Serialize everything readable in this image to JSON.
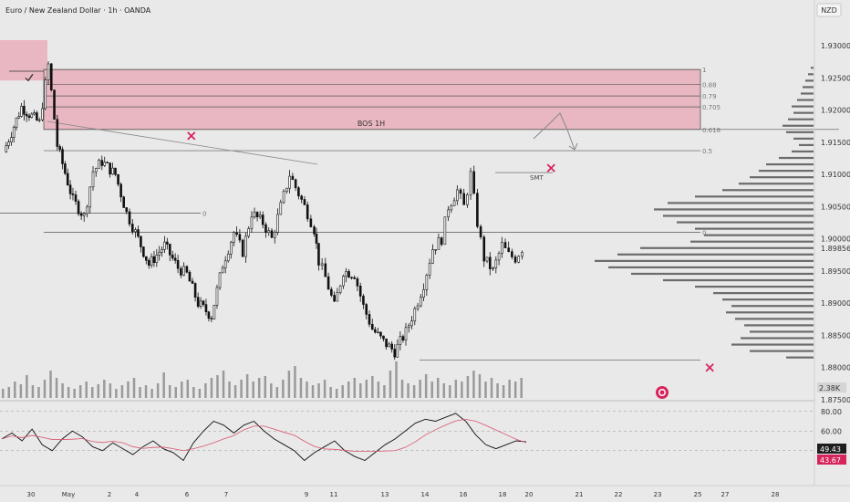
{
  "header": {
    "title": "Euro / New Zealand Dollar · 1h · OANDA",
    "currency_button": "NZD"
  },
  "colors": {
    "background": "#e9e9e9",
    "zone_fill": "#e8b7c1",
    "zone_border": "#555555",
    "candle": "#111111",
    "volume": "#9a9a9a",
    "profile": "#555555",
    "rsi_line": "#111111",
    "rsi_ma": "#d9546f",
    "cross": "#d6245c",
    "label_dark": "#1e1e1e",
    "label_red": "#d6245c"
  },
  "chart_data": {
    "type": "candlestick",
    "title": "Euro / New Zealand Dollar · 1h · OANDA",
    "price_axis": {
      "ticks": [
        "1.93000",
        "1.92500",
        "1.92000",
        "1.91500",
        "1.91000",
        "1.90500",
        "1.90000",
        "1.89500",
        "1.89000",
        "1.88500",
        "1.88000",
        "1.87500"
      ],
      "current_price": "1.89856",
      "ylim": [
        1.875,
        1.932
      ]
    },
    "x_axis": {
      "ticks": [
        "30",
        "May",
        "2",
        "4",
        "6",
        "7",
        "9",
        "11",
        "13",
        "14",
        "16",
        "18",
        "20",
        "21",
        "22",
        "23",
        "25",
        "27",
        "28"
      ]
    },
    "close_path": [
      {
        "d": 0,
        "p": 1.9135
      },
      {
        "d": 0.8,
        "p": 1.9205
      },
      {
        "d": 1.6,
        "p": 1.918
      },
      {
        "d": 2.0,
        "p": 1.927
      },
      {
        "d": 2.4,
        "p": 1.9145
      },
      {
        "d": 3.1,
        "p": 1.906
      },
      {
        "d": 3.6,
        "p": 1.9035
      },
      {
        "d": 4.0,
        "p": 1.9105
      },
      {
        "d": 4.4,
        "p": 1.912
      },
      {
        "d": 5.0,
        "p": 1.91
      },
      {
        "d": 5.5,
        "p": 1.904
      },
      {
        "d": 5.9,
        "p": 1.901
      },
      {
        "d": 6.5,
        "p": 1.896
      },
      {
        "d": 7.2,
        "p": 1.899
      },
      {
        "d": 7.8,
        "p": 1.8955
      },
      {
        "d": 8.2,
        "p": 1.8945
      },
      {
        "d": 8.7,
        "p": 1.89
      },
      {
        "d": 9.3,
        "p": 1.888
      },
      {
        "d": 9.8,
        "p": 1.896
      },
      {
        "d": 10.3,
        "p": 1.901
      },
      {
        "d": 10.7,
        "p": 1.898
      },
      {
        "d": 11.1,
        "p": 1.904
      },
      {
        "d": 11.6,
        "p": 1.9025
      },
      {
        "d": 12.0,
        "p": 1.9
      },
      {
        "d": 12.4,
        "p": 1.905
      },
      {
        "d": 12.8,
        "p": 1.91
      },
      {
        "d": 13.2,
        "p": 1.907
      },
      {
        "d": 13.6,
        "p": 1.904
      },
      {
        "d": 13.9,
        "p": 1.9015
      },
      {
        "d": 14.1,
        "p": 1.8965
      },
      {
        "d": 14.4,
        "p": 1.894
      },
      {
        "d": 14.8,
        "p": 1.8895
      },
      {
        "d": 15.2,
        "p": 1.895
      },
      {
        "d": 15.7,
        "p": 1.8945
      },
      {
        "d": 16.1,
        "p": 1.8895
      },
      {
        "d": 16.5,
        "p": 1.886
      },
      {
        "d": 17.0,
        "p": 1.884
      },
      {
        "d": 17.5,
        "p": 1.8825
      },
      {
        "d": 18.0,
        "p": 1.8855
      },
      {
        "d": 18.4,
        "p": 1.889
      },
      {
        "d": 18.8,
        "p": 1.893
      },
      {
        "d": 19.2,
        "p": 1.8985
      },
      {
        "d": 19.6,
        "p": 1.9
      },
      {
        "d": 19.9,
        "p": 1.905
      },
      {
        "d": 20.3,
        "p": 1.9075
      },
      {
        "d": 20.6,
        "p": 1.905
      },
      {
        "d": 20.9,
        "p": 1.91
      },
      {
        "d": 21.2,
        "p": 1.9025
      },
      {
        "d": 21.5,
        "p": 1.897
      },
      {
        "d": 21.9,
        "p": 1.895
      },
      {
        "d": 22.3,
        "p": 1.899
      },
      {
        "d": 22.6,
        "p": 1.8975
      },
      {
        "d": 22.9,
        "p": 1.897
      },
      {
        "d": 23.2,
        "p": 1.8985
      }
    ],
    "zone": {
      "top": 1.9263,
      "bottom": 1.917,
      "label": "BOS 1H"
    },
    "fib_levels": [
      {
        "label": "1",
        "price": 1.9263
      },
      {
        "label": "0.88",
        "price": 1.924
      },
      {
        "label": "0.79",
        "price": 1.9222
      },
      {
        "label": "0.705",
        "price": 1.9205
      },
      {
        "label": "0.618",
        "price": 1.917
      },
      {
        "label": "0.5",
        "price": 1.9137
      },
      {
        "label": "0",
        "price": 1.901
      }
    ],
    "other_levels": [
      {
        "label": "0",
        "price": 1.904
      },
      {
        "label": "SMT",
        "price": 1.9103
      },
      {
        "label": "",
        "price": 1.8812
      }
    ],
    "volume_axis": {
      "last_value": "2.38K"
    },
    "rsi": {
      "ticks": [
        "80.00",
        "60.00"
      ],
      "value": "49.43",
      "ma_value": "43.67",
      "values": [
        52,
        58,
        50,
        62,
        46,
        40,
        52,
        60,
        54,
        44,
        40,
        48,
        42,
        36,
        44,
        50,
        42,
        38,
        30,
        48,
        60,
        70,
        66,
        58,
        66,
        70,
        60,
        52,
        46,
        40,
        30,
        38,
        44,
        50,
        40,
        34,
        30,
        38,
        46,
        52,
        60,
        68,
        72,
        70,
        74,
        78,
        70,
        56,
        46,
        42,
        46,
        50,
        49
      ]
    },
    "volume_values": [
      10,
      12,
      18,
      15,
      25,
      14,
      12,
      20,
      30,
      22,
      16,
      12,
      10,
      14,
      18,
      12,
      15,
      20,
      16,
      10,
      14,
      18,
      22,
      12,
      14,
      10,
      16,
      28,
      14,
      12,
      18,
      20,
      12,
      10,
      16,
      22,
      25,
      30,
      18,
      14,
      20,
      26,
      18,
      22,
      24,
      16,
      12,
      20,
      30,
      35,
      22,
      18,
      14,
      16,
      20,
      12,
      10,
      14,
      18,
      22,
      16,
      20,
      24,
      18,
      14,
      30,
      40,
      20,
      16,
      14,
      20,
      26,
      18,
      22,
      16,
      14,
      20,
      18,
      24,
      30,
      26,
      18,
      22,
      16,
      14,
      20,
      18,
      22
    ],
    "volume_profile": [
      {
        "price": 1.9265,
        "w": 3
      },
      {
        "price": 1.9255,
        "w": 6
      },
      {
        "price": 1.9245,
        "w": 9
      },
      {
        "price": 1.9235,
        "w": 12
      },
      {
        "price": 1.9225,
        "w": 14
      },
      {
        "price": 1.9215,
        "w": 18
      },
      {
        "price": 1.9205,
        "w": 24
      },
      {
        "price": 1.9195,
        "w": 22
      },
      {
        "price": 1.9185,
        "w": 28
      },
      {
        "price": 1.9175,
        "w": 34
      },
      {
        "price": 1.9165,
        "w": 30
      },
      {
        "price": 1.9155,
        "w": 22
      },
      {
        "price": 1.9145,
        "w": 16
      },
      {
        "price": 1.9135,
        "w": 24
      },
      {
        "price": 1.9125,
        "w": 38
      },
      {
        "price": 1.9115,
        "w": 52
      },
      {
        "price": 1.9105,
        "w": 60
      },
      {
        "price": 1.9095,
        "w": 70
      },
      {
        "price": 1.9085,
        "w": 82
      },
      {
        "price": 1.9075,
        "w": 100
      },
      {
        "price": 1.9065,
        "w": 130
      },
      {
        "price": 1.9055,
        "w": 160
      },
      {
        "price": 1.9045,
        "w": 175
      },
      {
        "price": 1.9035,
        "w": 165
      },
      {
        "price": 1.9025,
        "w": 150
      },
      {
        "price": 1.9015,
        "w": 130
      },
      {
        "price": 1.9005,
        "w": 120
      },
      {
        "price": 1.8995,
        "w": 135
      },
      {
        "price": 1.8985,
        "w": 190
      },
      {
        "price": 1.8975,
        "w": 215
      },
      {
        "price": 1.8965,
        "w": 240
      },
      {
        "price": 1.8955,
        "w": 225
      },
      {
        "price": 1.8945,
        "w": 200
      },
      {
        "price": 1.8935,
        "w": 165
      },
      {
        "price": 1.8925,
        "w": 130
      },
      {
        "price": 1.8915,
        "w": 110
      },
      {
        "price": 1.8905,
        "w": 100
      },
      {
        "price": 1.8895,
        "w": 90
      },
      {
        "price": 1.8885,
        "w": 96
      },
      {
        "price": 1.8875,
        "w": 86
      },
      {
        "price": 1.8865,
        "w": 76
      },
      {
        "price": 1.8855,
        "w": 70
      },
      {
        "price": 1.8845,
        "w": 80
      },
      {
        "price": 1.8835,
        "w": 90
      },
      {
        "price": 1.8825,
        "w": 70
      },
      {
        "price": 1.8815,
        "w": 30
      }
    ],
    "annotations": [
      {
        "type": "cross",
        "d": 8.4,
        "p": 1.916
      },
      {
        "type": "cross",
        "d": 24.5,
        "p": 1.911
      },
      {
        "type": "cross",
        "d": 31.6,
        "p": 1.88
      },
      {
        "type": "check",
        "d": 1.1,
        "p": 1.925
      }
    ]
  }
}
